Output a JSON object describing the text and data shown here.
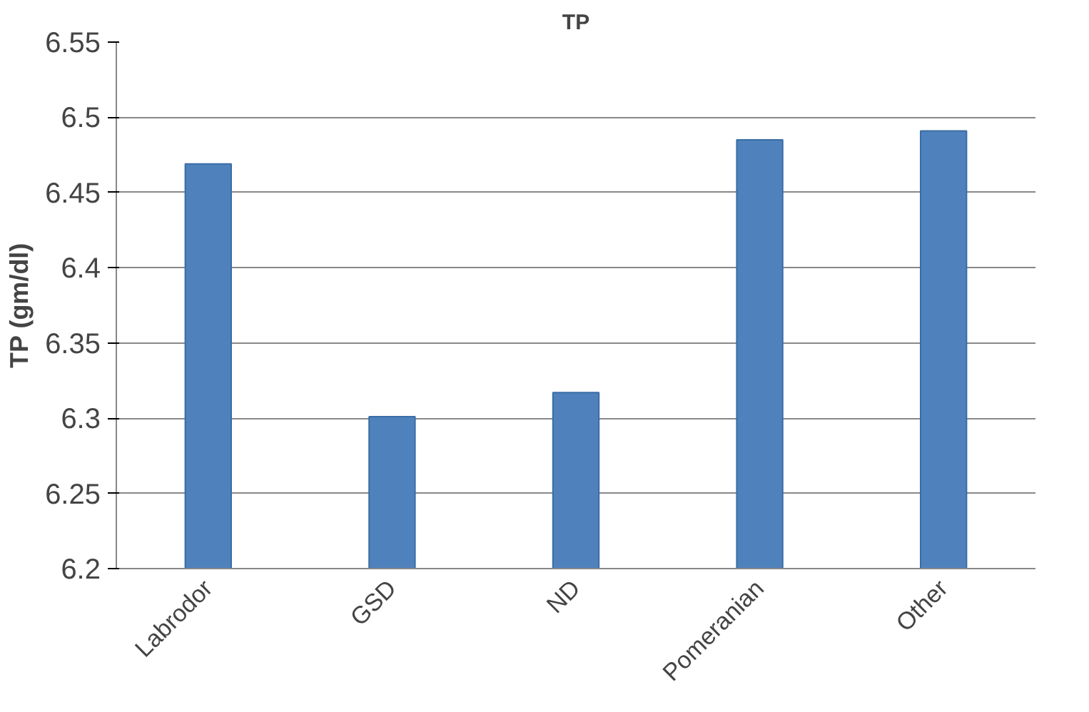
{
  "chart_data": {
    "type": "bar",
    "title": "TP",
    "ylabel": "TP (gm/dl)",
    "categories": [
      "Labrodor",
      "GSD",
      "ND",
      "Pomeranian",
      "Other"
    ],
    "values": [
      6.469,
      6.301,
      6.317,
      6.485,
      6.491
    ],
    "color": "#4f81bd",
    "ylim": [
      6.2,
      6.55
    ],
    "yticks": [
      6.2,
      6.25,
      6.3,
      6.35,
      6.4,
      6.45,
      6.5,
      6.55
    ],
    "grid": "y"
  }
}
